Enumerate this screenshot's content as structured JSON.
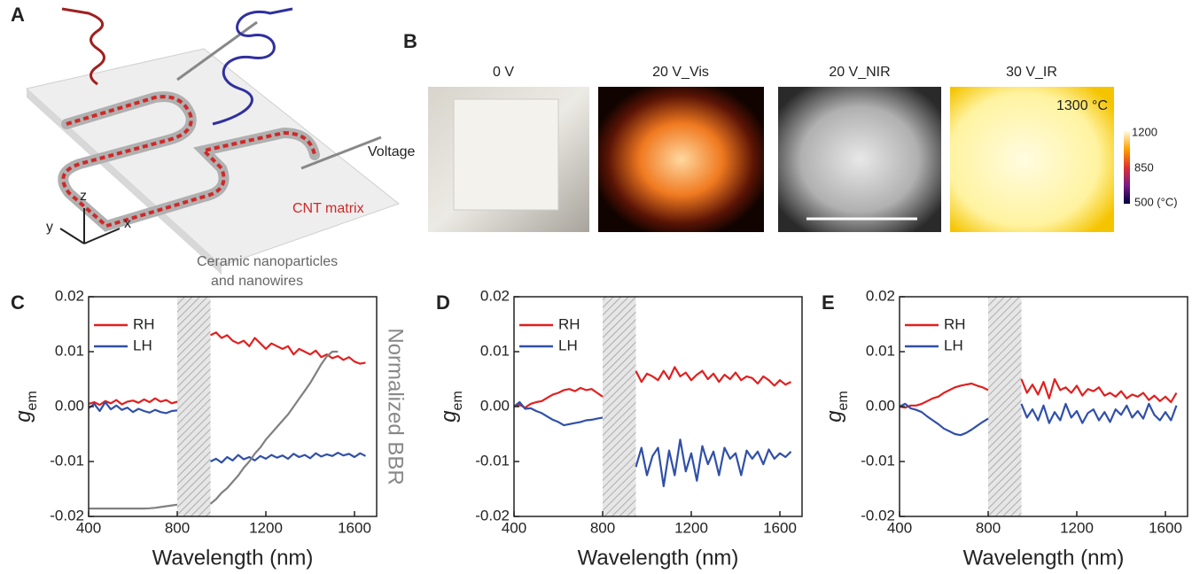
{
  "panel_a": {
    "label": "A",
    "voltage": "Voltage",
    "cnt": "CNT matrix",
    "axis_z": "z",
    "axis_y": "y",
    "axis_x": "x",
    "ceramic_line1": "Ceramic nanoparticles",
    "ceramic_line2": "and nanowires"
  },
  "panel_b": {
    "label": "B",
    "images": [
      "0 V",
      "20 V_Vis",
      "20 V_NIR",
      "30 V_IR"
    ],
    "temperature": "1300 °C",
    "colorbar": [
      "1200",
      "850",
      "500 (°C)"
    ]
  },
  "chart_data": [
    {
      "type": "line",
      "panel_label": "C",
      "xlabel": "Wavelength (nm)",
      "ylabel": "g",
      "ylabel_sub": "em",
      "y2label": "Normalized BBR",
      "x": [
        400,
        425,
        450,
        475,
        500,
        525,
        550,
        575,
        600,
        625,
        650,
        675,
        700,
        725,
        750,
        775,
        800,
        875,
        950,
        975,
        1000,
        1025,
        1050,
        1075,
        1100,
        1125,
        1150,
        1175,
        1200,
        1225,
        1250,
        1275,
        1300,
        1325,
        1350,
        1375,
        1400,
        1425,
        1450,
        1475,
        1500,
        1525,
        1550,
        1575,
        1600,
        1625,
        1650
      ],
      "xlim": [
        400,
        1700
      ],
      "xticks": [
        400,
        800,
        1200,
        1600
      ],
      "ylim": [
        -0.02,
        0.02
      ],
      "yticks": [
        -0.02,
        -0.01,
        {
          "value": 0,
          "label": "0.00"
        },
        0.01,
        0.02
      ],
      "y2lim": [
        -0.05,
        1.35
      ],
      "excluded_range": [
        800,
        950
      ],
      "legend": "top-left",
      "series": [
        {
          "name": "RH",
          "color": "#e02020",
          "values": [
            0.0005,
            0.0008,
            0.0003,
            0.001,
            0.0006,
            0.0012,
            0.0004,
            0.0009,
            0.0011,
            0.0007,
            0.0013,
            0.0008,
            0.0015,
            0.0009,
            0.0012,
            0.0006,
            0.0009,
            null,
            0.013,
            0.0135,
            0.0125,
            0.013,
            0.012,
            0.0115,
            0.012,
            0.011,
            0.0125,
            0.0115,
            0.0105,
            0.0115,
            0.011,
            0.0105,
            0.011,
            0.0095,
            0.0105,
            0.01,
            0.0095,
            0.0102,
            0.009,
            0.0095,
            0.0088,
            0.0092,
            0.0085,
            0.009,
            0.0082,
            0.0078,
            0.008
          ]
        },
        {
          "name": "LH",
          "color": "#3050a8",
          "values": [
            -0.0003,
            0.0005,
            -0.0008,
            0.0008,
            -0.0005,
            0.0002,
            -0.0006,
            -0.0002,
            -0.001,
            -0.0004,
            -0.0008,
            -0.0011,
            -0.0006,
            -0.001,
            -0.0012,
            -0.0008,
            -0.0007,
            null,
            -0.01,
            -0.0095,
            -0.0102,
            -0.0092,
            -0.0098,
            -0.0088,
            -0.0096,
            -0.0092,
            -0.0098,
            -0.009,
            -0.0095,
            -0.0088,
            -0.0093,
            -0.0089,
            -0.0095,
            -0.0086,
            -0.0092,
            -0.0088,
            -0.0094,
            -0.0085,
            -0.0091,
            -0.0087,
            -0.009,
            -0.0084,
            -0.0089,
            -0.0086,
            -0.0092,
            -0.0085,
            -0.009
          ]
        },
        {
          "color": "#808080",
          "axis": "y2",
          "values": [
            0,
            0,
            0,
            0,
            0,
            0,
            0,
            0,
            0,
            0,
            0,
            0.002,
            0.005,
            0.01,
            0.015,
            0.02,
            0.025,
            null,
            0.03,
            0.06,
            0.1,
            0.13,
            0.17,
            0.21,
            0.26,
            0.3,
            0.35,
            0.39,
            0.44,
            0.48,
            0.52,
            0.56,
            0.6,
            0.65,
            0.7,
            0.75,
            0.8,
            0.86,
            0.92,
            0.97,
            1.0,
            1.0,
            null,
            null,
            null,
            null,
            null
          ]
        }
      ]
    },
    {
      "type": "line",
      "panel_label": "D",
      "xlabel": "Wavelength (nm)",
      "ylabel": "g",
      "ylabel_sub": "em",
      "x": [
        400,
        425,
        450,
        475,
        500,
        525,
        550,
        575,
        600,
        625,
        650,
        675,
        700,
        725,
        750,
        775,
        800,
        875,
        950,
        975,
        1000,
        1025,
        1050,
        1075,
        1100,
        1125,
        1150,
        1175,
        1200,
        1225,
        1250,
        1275,
        1300,
        1325,
        1350,
        1375,
        1400,
        1425,
        1450,
        1475,
        1500,
        1525,
        1550,
        1575,
        1600,
        1625,
        1650
      ],
      "xlim": [
        400,
        1700
      ],
      "xticks": [
        400,
        800,
        1200,
        1600
      ],
      "ylim": [
        -0.02,
        0.02
      ],
      "yticks": [
        -0.02,
        -0.01,
        {
          "value": 0,
          "label": "0.00"
        },
        0.01,
        0.02
      ],
      "excluded_range": [
        800,
        950
      ],
      "legend": "top-left",
      "series": [
        {
          "name": "RH",
          "color": "#e02020",
          "values": [
            0,
            0.0003,
            -0.0002,
            0.0005,
            0.0008,
            0.001,
            0.0016,
            0.0022,
            0.0025,
            0.003,
            0.0032,
            0.0028,
            0.0034,
            0.003,
            0.0032,
            0.0025,
            0.0018,
            null,
            0.0065,
            0.0045,
            0.006,
            0.0055,
            0.0048,
            0.0065,
            0.005,
            0.0072,
            0.0055,
            0.0062,
            0.0048,
            0.0058,
            0.0065,
            0.005,
            0.006,
            0.0045,
            0.0058,
            0.005,
            0.0062,
            0.0048,
            0.0055,
            0.0052,
            0.0042,
            0.0055,
            0.0048,
            0.0038,
            0.0048,
            0.004,
            0.0045
          ]
        },
        {
          "name": "LH",
          "color": "#3050a8",
          "values": [
            0,
            0.0008,
            -0.0004,
            -0.0003,
            -0.0008,
            -0.0012,
            -0.0018,
            -0.0024,
            -0.0028,
            -0.0034,
            -0.0032,
            -0.003,
            -0.0028,
            -0.0025,
            -0.0024,
            -0.0022,
            -0.002,
            null,
            -0.011,
            -0.0075,
            -0.0125,
            -0.009,
            -0.0075,
            -0.0145,
            -0.008,
            -0.0125,
            -0.006,
            -0.0118,
            -0.0085,
            -0.0135,
            -0.0072,
            -0.0105,
            -0.0082,
            -0.0125,
            -0.0075,
            -0.0095,
            -0.0085,
            -0.0125,
            -0.008,
            -0.0095,
            -0.0082,
            -0.0105,
            -0.0078,
            -0.0095,
            -0.0085,
            -0.0092,
            -0.0082
          ]
        }
      ]
    },
    {
      "type": "line",
      "panel_label": "E",
      "xlabel": "Wavelength (nm)",
      "ylabel": "g",
      "ylabel_sub": "em",
      "x": [
        400,
        425,
        450,
        475,
        500,
        525,
        550,
        575,
        600,
        625,
        650,
        675,
        700,
        725,
        750,
        775,
        800,
        875,
        950,
        975,
        1000,
        1025,
        1050,
        1075,
        1100,
        1125,
        1150,
        1175,
        1200,
        1225,
        1250,
        1275,
        1300,
        1325,
        1350,
        1375,
        1400,
        1425,
        1450,
        1475,
        1500,
        1525,
        1550,
        1575,
        1600,
        1625,
        1650
      ],
      "xlim": [
        400,
        1700
      ],
      "xticks": [
        400,
        800,
        1200,
        1600
      ],
      "ylim": [
        -0.02,
        0.02
      ],
      "yticks": [
        -0.02,
        -0.01,
        {
          "value": 0,
          "label": "0.00"
        },
        0.01,
        0.02
      ],
      "excluded_range": [
        800,
        950
      ],
      "legend": "top-left",
      "series": [
        {
          "name": "RH",
          "color": "#e02020",
          "values": [
            0,
            -0.0002,
            0.0002,
            0.0002,
            0.0005,
            0.001,
            0.0015,
            0.0018,
            0.0025,
            0.003,
            0.0035,
            0.0038,
            0.004,
            0.0042,
            0.0038,
            0.0035,
            0.003,
            null,
            0.005,
            0.0025,
            0.004,
            0.0022,
            0.0045,
            0.0015,
            0.005,
            0.003,
            0.0035,
            0.0025,
            0.0038,
            0.002,
            0.0032,
            0.0028,
            0.0035,
            0.002,
            0.0025,
            0.0018,
            0.0028,
            0.0015,
            0.0022,
            0.0018,
            0.0025,
            0.0012,
            0.002,
            0.001,
            0.0018,
            0.0008,
            0.0025
          ]
        },
        {
          "name": "LH",
          "color": "#3050a8",
          "values": [
            0,
            0.0005,
            -0.0003,
            -0.0006,
            -0.001,
            -0.0018,
            -0.0025,
            -0.0032,
            -0.004,
            -0.0045,
            -0.005,
            -0.0052,
            -0.0048,
            -0.0042,
            -0.0035,
            -0.0028,
            -0.0022,
            null,
            0.0005,
            -0.002,
            -0.0005,
            -0.0025,
            0.0002,
            -0.003,
            -0.001,
            -0.0025,
            0.0005,
            -0.002,
            -0.0008,
            -0.003,
            -0.0012,
            -0.0005,
            -0.0025,
            -0.001,
            -0.0028,
            -0.0005,
            -0.0015,
            0.0002,
            -0.002,
            -0.0008,
            -0.0022,
            0.0005,
            -0.0015,
            -0.0025,
            -0.001,
            -0.0025,
            0.0002
          ]
        }
      ]
    }
  ]
}
